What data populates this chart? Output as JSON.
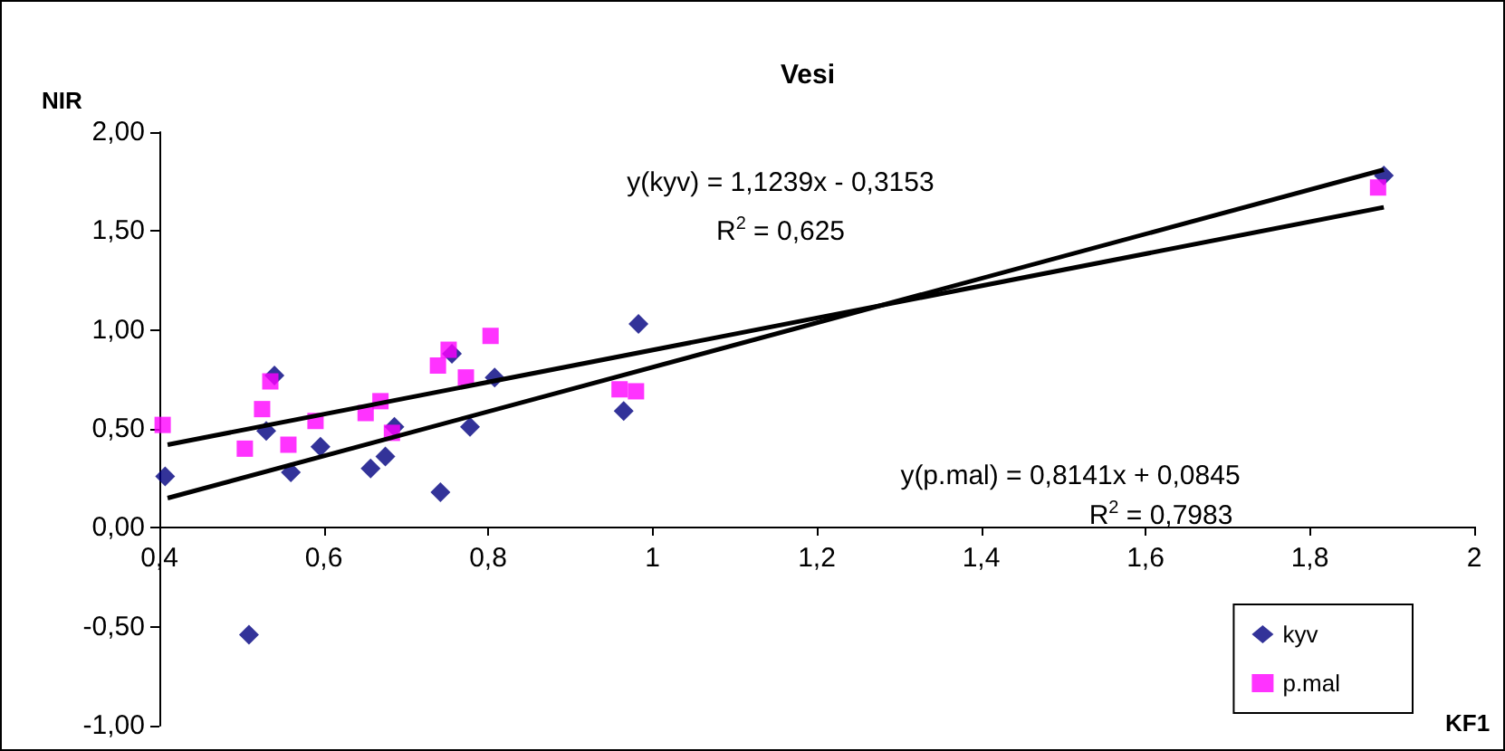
{
  "chart_data": {
    "type": "scatter",
    "title": "Vesi",
    "xlabel": "KF1",
    "ylabel": "NIR",
    "series": [
      {
        "name": "kyv",
        "color": "#000080",
        "marker": "diamond",
        "x": [
          0.407,
          0.53,
          0.54,
          0.56,
          0.596,
          0.657,
          0.675,
          0.686,
          0.742,
          0.756,
          0.778,
          0.808,
          0.965,
          0.983,
          0.509,
          1.89
        ],
        "values": [
          0.26,
          0.49,
          0.77,
          0.28,
          0.41,
          0.3,
          0.36,
          0.51,
          0.18,
          0.88,
          0.51,
          0.76,
          0.59,
          1.03,
          -0.54,
          1.78
        ]
      },
      {
        "name": "p.mal",
        "color": "#ff00ff",
        "marker": "square",
        "x": [
          0.404,
          0.504,
          0.525,
          0.535,
          0.557,
          0.59,
          0.651,
          0.669,
          0.683,
          0.739,
          0.752,
          0.773,
          0.803,
          0.96,
          0.98,
          1.883
        ],
        "values": [
          0.52,
          0.4,
          0.6,
          0.74,
          0.42,
          0.54,
          0.58,
          0.64,
          0.48,
          0.82,
          0.9,
          0.76,
          0.97,
          0.7,
          0.69,
          1.72
        ]
      },
      {
        "type": "line",
        "color": "#000000",
        "marker": "none",
        "line_style": "solid",
        "x": [
          0.41,
          1.89
        ],
        "values": [
          0.15,
          1.81
        ]
      },
      {
        "type": "line",
        "color": "#000000",
        "marker": "none",
        "line_style": "solid",
        "x": [
          0.41,
          1.89
        ],
        "values": [
          0.42,
          1.62
        ]
      }
    ],
    "annotations": [
      "y(kyv) = 1,1239x - 0,3153",
      "R$^{2}$ = 0,625",
      "y(p.mal) = 0,8141x + 0,0845",
      "R$^{2}$ = 0,7983"
    ],
    "xlim": [
      0.4,
      2
    ],
    "xticks": [
      {
        "value": 0.4,
        "label": "0,4"
      },
      {
        "value": 0.6,
        "label": "0,6"
      },
      {
        "value": 0.8,
        "label": "0,8"
      },
      {
        "value": 1,
        "label": "1"
      },
      {
        "value": 1.2,
        "label": "1,2"
      },
      {
        "value": 1.4,
        "label": "1,4"
      },
      {
        "value": 1.6,
        "label": "1,6"
      },
      {
        "value": 1.8,
        "label": "1,8"
      },
      {
        "value": 2,
        "label": "2"
      }
    ],
    "ylim": [
      -1,
      2
    ],
    "yticks": [
      {
        "value": -1,
        "label": "-1,00"
      },
      {
        "value": -0.5,
        "label": "-0,50"
      },
      {
        "value": 0,
        "label": "0,00"
      },
      {
        "value": 0.5,
        "label": "0,50"
      },
      {
        "value": 1,
        "label": "1,00"
      },
      {
        "value": 1.5,
        "label": "1,50"
      },
      {
        "value": 2,
        "label": "2,00"
      }
    ],
    "grid": false,
    "legend": "bottom right"
  }
}
